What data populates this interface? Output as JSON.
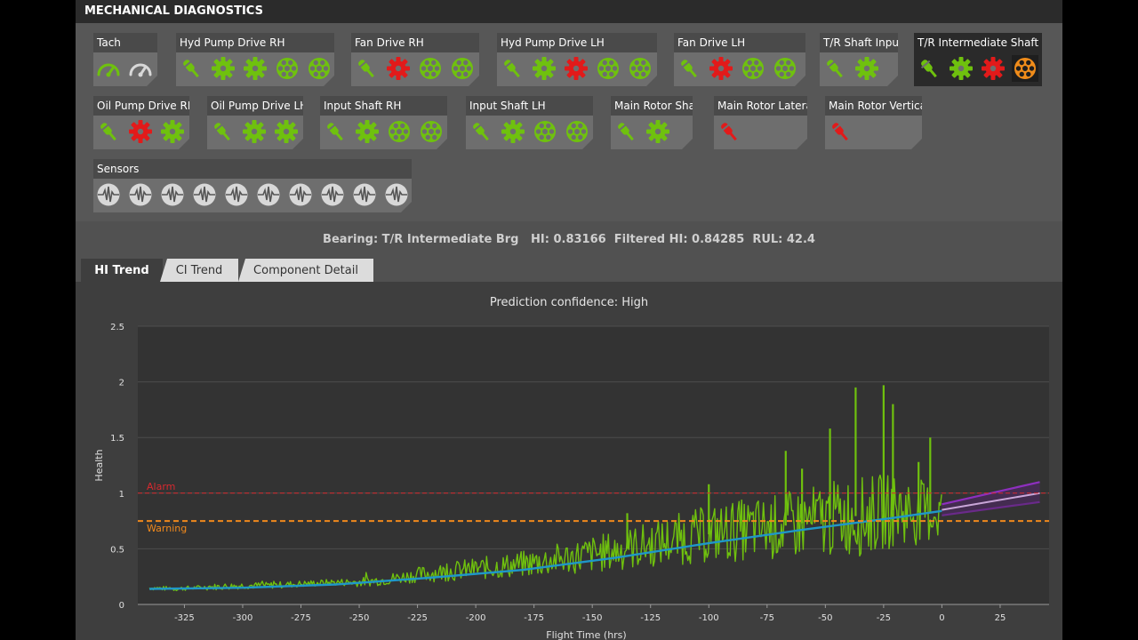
{
  "header": {
    "title": "MECHANICAL DIAGNOSTICS"
  },
  "colors": {
    "green": "#6fc10e",
    "red": "#e21a1a",
    "orange": "#f08c1a",
    "gray": "#d8d8d8"
  },
  "components": [
    {
      "label": "Tach",
      "icons": [
        {
          "type": "tach",
          "status": "green"
        },
        {
          "type": "tach",
          "status": "gray"
        }
      ]
    },
    {
      "label": "Hyd Pump Drive RH",
      "icons": [
        {
          "type": "sensor",
          "status": "green"
        },
        {
          "type": "gear",
          "status": "green"
        },
        {
          "type": "gear",
          "status": "green"
        },
        {
          "type": "bearing",
          "status": "green"
        },
        {
          "type": "bearing",
          "status": "green"
        }
      ]
    },
    {
      "label": "Fan Drive RH",
      "icons": [
        {
          "type": "sensor",
          "status": "green"
        },
        {
          "type": "gear",
          "status": "red"
        },
        {
          "type": "bearing",
          "status": "green"
        },
        {
          "type": "bearing",
          "status": "green"
        }
      ]
    },
    {
      "label": "Hyd Pump Drive LH",
      "icons": [
        {
          "type": "sensor",
          "status": "green"
        },
        {
          "type": "gear",
          "status": "green"
        },
        {
          "type": "gear",
          "status": "red"
        },
        {
          "type": "bearing",
          "status": "green"
        },
        {
          "type": "bearing",
          "status": "green"
        }
      ]
    },
    {
      "label": "Fan Drive LH",
      "icons": [
        {
          "type": "sensor",
          "status": "green"
        },
        {
          "type": "gear",
          "status": "red"
        },
        {
          "type": "bearing",
          "status": "green"
        },
        {
          "type": "bearing",
          "status": "green"
        }
      ]
    },
    {
      "label": "T/R Shaft Input",
      "icons": [
        {
          "type": "sensor",
          "status": "green"
        },
        {
          "type": "gear",
          "status": "green"
        }
      ]
    },
    {
      "label": "T/R Intermediate Shaft",
      "active": true,
      "icons": [
        {
          "type": "sensor",
          "status": "green"
        },
        {
          "type": "gear",
          "status": "green"
        },
        {
          "type": "gear",
          "status": "red"
        },
        {
          "type": "bearing",
          "status": "orange",
          "selected": true
        }
      ]
    },
    {
      "label": "Oil Pump Drive RH",
      "icons": [
        {
          "type": "sensor",
          "status": "green"
        },
        {
          "type": "gear",
          "status": "red"
        },
        {
          "type": "gear",
          "status": "green"
        }
      ]
    },
    {
      "label": "Oil Pump Drive LH",
      "icons": [
        {
          "type": "sensor",
          "status": "green"
        },
        {
          "type": "gear",
          "status": "green"
        },
        {
          "type": "gear",
          "status": "green"
        }
      ]
    },
    {
      "label": "Input Shaft RH",
      "icons": [
        {
          "type": "sensor",
          "status": "green"
        },
        {
          "type": "gear",
          "status": "green"
        },
        {
          "type": "bearing",
          "status": "green"
        },
        {
          "type": "bearing",
          "status": "green"
        }
      ]
    },
    {
      "label": "Input Shaft LH",
      "icons": [
        {
          "type": "sensor",
          "status": "green"
        },
        {
          "type": "gear",
          "status": "green"
        },
        {
          "type": "bearing",
          "status": "green"
        },
        {
          "type": "bearing",
          "status": "green"
        }
      ]
    },
    {
      "label": "Main Rotor Shaft",
      "icons": [
        {
          "type": "sensor",
          "status": "green"
        },
        {
          "type": "gear",
          "status": "green"
        }
      ]
    },
    {
      "label": "Main Rotor Lateral",
      "icons": [
        {
          "type": "sensor",
          "status": "red"
        }
      ]
    },
    {
      "label": "Main Rotor Vertical",
      "icons": [
        {
          "type": "sensor",
          "status": "red"
        }
      ]
    },
    {
      "label": "Sensors",
      "icons": [
        {
          "type": "pulse",
          "status": "gray"
        },
        {
          "type": "pulse",
          "status": "gray"
        },
        {
          "type": "pulse",
          "status": "gray"
        },
        {
          "type": "pulse",
          "status": "gray"
        },
        {
          "type": "pulse",
          "status": "gray"
        },
        {
          "type": "pulse",
          "status": "gray"
        },
        {
          "type": "pulse",
          "status": "gray"
        },
        {
          "type": "pulse",
          "status": "gray"
        },
        {
          "type": "pulse",
          "status": "gray"
        },
        {
          "type": "pulse",
          "status": "gray"
        }
      ]
    }
  ],
  "info": {
    "text": "Bearing: T/R Intermediate Brg   HI: 0.83166  Filtered HI: 0.84285  RUL: 42.4"
  },
  "tabs": [
    {
      "label": "HI Trend",
      "active": true
    },
    {
      "label": "CI Trend"
    },
    {
      "label": "Component Detail"
    }
  ],
  "confidence": "Prediction confidence: High",
  "chart_data": {
    "type": "line",
    "xlabel": "Flight Time (hrs)",
    "ylabel": "Health",
    "xlim": [
      -345,
      46
    ],
    "ylim": [
      0,
      2.5
    ],
    "xticks": [
      -325,
      -300,
      -275,
      -250,
      -225,
      -200,
      -175,
      -150,
      -125,
      -100,
      -75,
      -50,
      -25,
      0,
      25
    ],
    "yticks": [
      0,
      0.5,
      1,
      1.5,
      2,
      2.5
    ],
    "grid": "horizontal",
    "thresholds": [
      {
        "name": "Alarm",
        "value": 1.0,
        "color": "#d9292f",
        "style": "dashed"
      },
      {
        "name": "Warning",
        "value": 0.75,
        "color": "#f0891c",
        "style": "dashed"
      }
    ],
    "series": [
      {
        "color": "#6fc10e",
        "x": [
          -340,
          -330,
          -320,
          -310,
          -300,
          -290,
          -280,
          -270,
          -260,
          -250,
          -240,
          -230,
          -220,
          -210,
          -200,
          -190,
          -180,
          -170,
          -160,
          -150,
          -140,
          -130,
          -120,
          -110,
          -100,
          -90,
          -80,
          -70,
          -60,
          -50,
          -45,
          -40,
          -35,
          -30,
          -25,
          -20,
          -15,
          -10,
          -5,
          0
        ],
        "y": [
          0.15,
          0.14,
          0.15,
          0.16,
          0.17,
          0.17,
          0.18,
          0.19,
          0.2,
          0.2,
          0.22,
          0.25,
          0.28,
          0.3,
          0.32,
          0.34,
          0.36,
          0.39,
          0.42,
          0.45,
          0.48,
          0.52,
          0.56,
          0.6,
          0.63,
          0.66,
          0.68,
          0.7,
          0.73,
          0.76,
          0.78,
          0.8,
          0.79,
          0.81,
          0.83,
          0.85,
          0.84,
          0.83,
          0.83,
          0.83
        ],
        "spread": [
          0.02,
          0.02,
          0.02,
          0.03,
          0.03,
          0.03,
          0.03,
          0.03,
          0.03,
          0.04,
          0.05,
          0.06,
          0.08,
          0.09,
          0.1,
          0.11,
          0.12,
          0.14,
          0.15,
          0.17,
          0.18,
          0.2,
          0.22,
          0.24,
          0.26,
          0.28,
          0.28,
          0.3,
          0.32,
          0.34,
          0.34,
          0.36,
          0.36,
          0.36,
          0.34,
          0.34,
          0.32,
          0.3,
          0.28,
          0.26
        ],
        "spikes": [
          {
            "x": -37,
            "y": 1.95
          },
          {
            "x": -25,
            "y": 1.97
          },
          {
            "x": -21,
            "y": 1.8
          },
          {
            "x": -48,
            "y": 1.58
          },
          {
            "x": -67,
            "y": 1.38
          },
          {
            "x": -60,
            "y": 1.22
          },
          {
            "x": -100,
            "y": 1.08
          },
          {
            "x": -135,
            "y": 0.82
          },
          {
            "x": -10,
            "y": 1.28
          },
          {
            "x": -5,
            "y": 1.5
          }
        ]
      },
      {
        "color": "#1f97c8",
        "x": [
          -340,
          -300,
          -260,
          -220,
          -180,
          -140,
          -100,
          -60,
          -20,
          0
        ],
        "y": [
          0.14,
          0.15,
          0.18,
          0.24,
          0.31,
          0.42,
          0.55,
          0.67,
          0.78,
          0.84
        ]
      }
    ],
    "prediction": {
      "x": [
        0,
        42
      ],
      "center": [
        0.85,
        1.0
      ],
      "upper": [
        0.9,
        1.1
      ],
      "lower": [
        0.8,
        0.92
      ],
      "center_color": "#c9a6d8",
      "band_color": "#8e2fbf"
    }
  }
}
